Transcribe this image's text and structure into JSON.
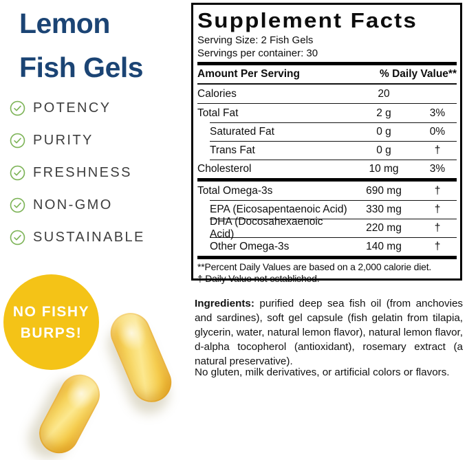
{
  "left": {
    "title_line1": "Lemon",
    "title_line2": "Fish Gels",
    "title_color": "#1b4474",
    "check_color": "#7cb356",
    "text_color": "#3e3e3e",
    "checklist": [
      {
        "label": "POTENCY"
      },
      {
        "label": "PURITY"
      },
      {
        "label": "FRESHNESS"
      },
      {
        "label": "NON-GMO"
      },
      {
        "label": "SUSTAINABLE"
      }
    ],
    "badge": {
      "line1": "NO FISHY",
      "line2": "BURPS!",
      "bg": "#f4c317",
      "text_color": "#ffffff"
    },
    "capsule_color": "#f6cf52"
  },
  "panel": {
    "title": "Supplement Facts",
    "serving_size": "Serving Size: 2 Fish Gels",
    "servings_per_container": "Servings per container: 30",
    "header": {
      "amount_label": "Amount Per Serving",
      "dv_label": "% Daily Value**"
    },
    "rows": [
      {
        "label": "Calories",
        "amount": "20",
        "dv": "",
        "indent": false,
        "sep": "full"
      },
      {
        "label": "Total Fat",
        "amount": "2 g",
        "dv": "3%",
        "indent": false,
        "sep": "full"
      },
      {
        "label": "Saturated Fat",
        "amount": "0 g",
        "dv": "0%",
        "indent": true,
        "sep": "indent"
      },
      {
        "label": "Trans Fat",
        "amount": "0 g",
        "dv": "†",
        "indent": true,
        "sep": "indent"
      },
      {
        "label": "Cholesterol",
        "amount": "10 mg",
        "dv": "3%",
        "indent": false,
        "sep": "indent"
      },
      {
        "label": "Total Omega-3s",
        "amount": "690 mg",
        "dv": "†",
        "indent": false,
        "sep": "thick"
      },
      {
        "label": "EPA (Eicosapentaenoic Acid)",
        "amount": "330 mg",
        "dv": "†",
        "indent": true,
        "sep": "indent"
      },
      {
        "label": "DHA (Docosahexaenoic Acid)",
        "amount": "220 mg",
        "dv": "†",
        "indent": true,
        "sep": "indent"
      },
      {
        "label": "Other Omega-3s",
        "amount": "140 mg",
        "dv": "†",
        "indent": true,
        "sep": "indent"
      }
    ],
    "footnotes": [
      "**Percent Daily Values are based on a 2,000 calorie diet.",
      "†  Daily Value not established."
    ]
  },
  "ingredients": {
    "label": "Ingredients:",
    "text": " purified deep sea fish oil (from anchovies and sardines), soft gel capsule (fish gelatin from tilapia, glycerin, water, natural lemon flavor), natural lemon flavor, d-alpha tocopherol (antioxidant), rosemary extract (a natural preservative).",
    "note": "No gluten, milk derivatives, or artificial colors or flavors."
  }
}
